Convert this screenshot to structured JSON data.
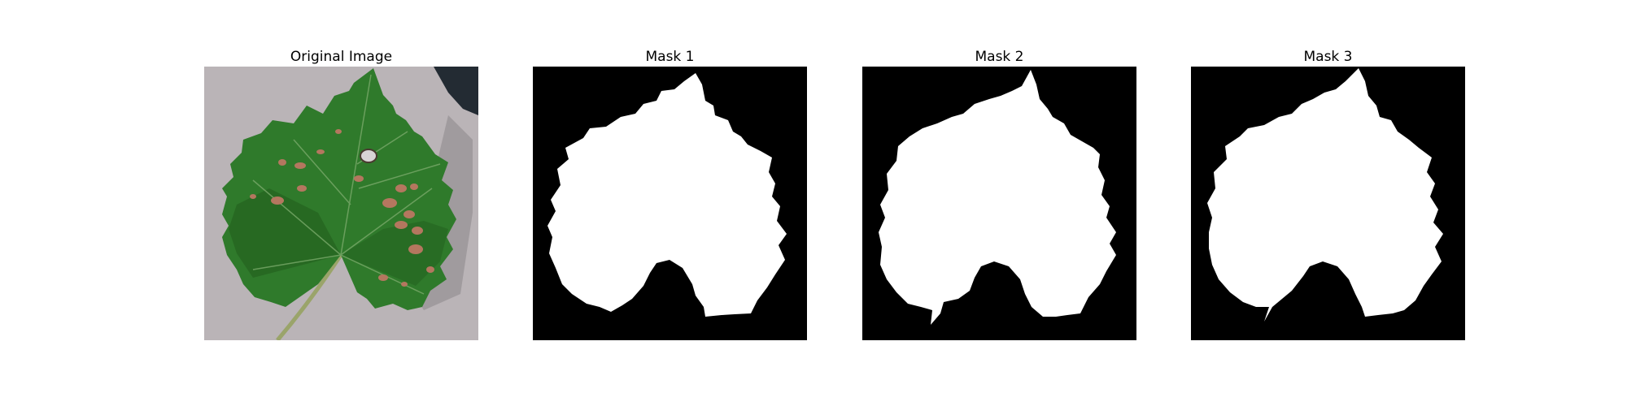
{
  "figure": {
    "panels": [
      {
        "title": "Original Image",
        "content": "leaf-photo"
      },
      {
        "title": "Mask 1",
        "content": "binary-mask"
      },
      {
        "title": "Mask 2",
        "content": "binary-mask"
      },
      {
        "title": "Mask 3",
        "content": "binary-mask"
      }
    ],
    "colors": {
      "background": "#ffffff",
      "mask_background": "#000000",
      "mask_foreground": "#ffffff",
      "leaf_dark": "#1f5a1c",
      "leaf_mid": "#2f7a2b",
      "surface": "#b9b3b6",
      "shadow": "#202830",
      "lesion": "#b4775f"
    }
  }
}
